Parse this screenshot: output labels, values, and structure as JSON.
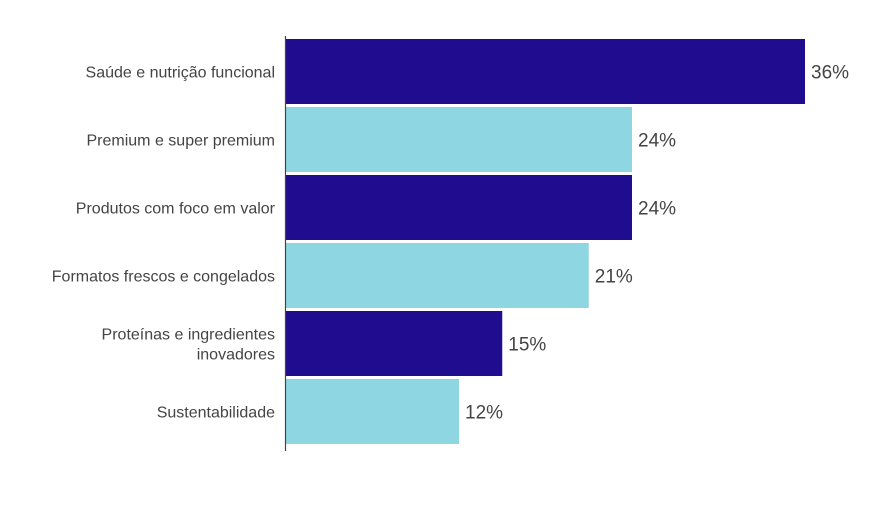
{
  "chart_data": {
    "type": "bar",
    "orientation": "horizontal",
    "categories": [
      "Saúde e nutrição funcional",
      "Premium e super premium",
      "Produtos com foco em valor",
      "Formatos frescos e congelados",
      "Proteínas e ingredientes inovadores",
      "Sustentabilidade"
    ],
    "category_lines": [
      [
        "Saúde e nutrição funcional"
      ],
      [
        "Premium e super premium"
      ],
      [
        "Produtos com foco em valor"
      ],
      [
        "Formatos frescos e congelados"
      ],
      [
        "Proteínas e ingredientes",
        "inovadores"
      ],
      [
        "Sustentabilidade"
      ]
    ],
    "values": [
      36,
      24,
      24,
      21,
      15,
      12
    ],
    "labels": [
      "36%",
      "24%",
      "24%",
      "21%",
      "15%",
      "12%"
    ],
    "unit": "%",
    "xlim": [
      0,
      36
    ],
    "grid": false,
    "colors": [
      "#200c8f",
      "#8fd6e3",
      "#200c8f",
      "#8fd6e3",
      "#200c8f",
      "#8fd6e3"
    ]
  }
}
